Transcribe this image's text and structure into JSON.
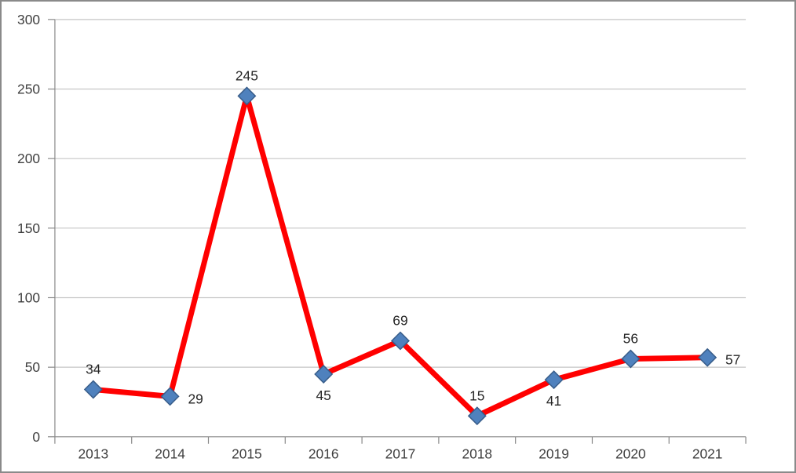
{
  "chart_data": {
    "type": "line",
    "title": "",
    "xlabel": "",
    "ylabel": "",
    "categories": [
      "2013",
      "2014",
      "2015",
      "2016",
      "2017",
      "2018",
      "2019",
      "2020",
      "2021"
    ],
    "series": [
      {
        "name": "",
        "values": [
          34,
          29,
          245,
          45,
          69,
          15,
          41,
          56,
          57
        ]
      }
    ],
    "data_labels": [
      "34",
      "29",
      "245",
      "45",
      "69",
      "15",
      "41",
      "56",
      "57"
    ],
    "data_label_positions": [
      "above",
      "right",
      "above",
      "below",
      "above",
      "above",
      "below",
      "above",
      "right"
    ],
    "ylim": [
      0,
      300
    ],
    "ytick_step": 50,
    "yticks": [
      "0",
      "50",
      "100",
      "150",
      "200",
      "250",
      "300"
    ],
    "grid": true,
    "legend": "none",
    "marker": "diamond"
  },
  "colors": {
    "line": "#FF0000",
    "marker_fill": "#4F81BD",
    "marker_stroke": "#385D8A",
    "gridline": "#C6C6C6",
    "axis": "#898989",
    "tick_text": "#3F3F3F",
    "data_label_text": "#262626",
    "background": "#FFFFFF",
    "frame_border": "#8A8A8A"
  }
}
